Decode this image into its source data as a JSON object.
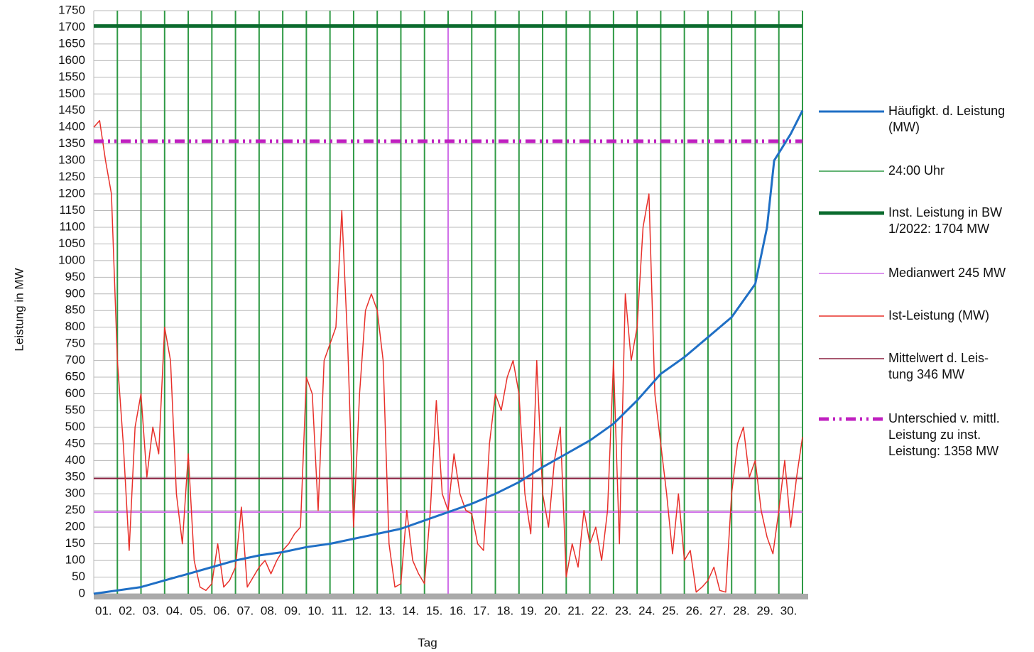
{
  "chart_data": {
    "type": "line",
    "y_label": "Leistung in MW",
    "x_label": "Tag",
    "categories": [
      "01.",
      "02.",
      "03.",
      "04.",
      "05.",
      "06.",
      "07.",
      "08.",
      "09.",
      "10.",
      "11.",
      "12.",
      "13.",
      "14.",
      "15.",
      "16.",
      "17.",
      "18.",
      "19.",
      "20.",
      "21.",
      "22.",
      "23.",
      "24.",
      "25.",
      "26.",
      "27.",
      "28.",
      "29.",
      "30."
    ],
    "xlim": [
      0,
      30
    ],
    "ylim": [
      0,
      1750
    ],
    "yticks": [
      0,
      50,
      100,
      150,
      200,
      250,
      300,
      350,
      400,
      450,
      500,
      550,
      600,
      650,
      700,
      750,
      800,
      850,
      900,
      950,
      1000,
      1050,
      1100,
      1150,
      1200,
      1250,
      1300,
      1350,
      1400,
      1450,
      1500,
      1550,
      1600,
      1650,
      1700,
      1750
    ],
    "grid": true,
    "series": [
      {
        "name": "Häufigkt. d. Leistung\n(MW)",
        "color": "#1f6fc5",
        "kind": "curve",
        "x": [
          0,
          2,
          3,
          4,
          5,
          6,
          7,
          8,
          9,
          10,
          11,
          12,
          13,
          14,
          15,
          16,
          17,
          18,
          19,
          20,
          21,
          22,
          23,
          24,
          25,
          26,
          27,
          28,
          28.5,
          28.8,
          29.5,
          30
        ],
        "values": [
          0,
          20,
          40,
          60,
          80,
          100,
          115,
          125,
          140,
          150,
          165,
          180,
          195,
          220,
          245,
          270,
          300,
          335,
          380,
          420,
          460,
          510,
          580,
          660,
          710,
          770,
          830,
          930,
          1100,
          1300,
          1380,
          1450
        ]
      },
      {
        "name": "24:00 Uhr",
        "color": "#2f9a45",
        "kind": "vlines",
        "values": [
          1,
          2,
          3,
          4,
          5,
          6,
          7,
          8,
          9,
          10,
          11,
          12,
          13,
          14,
          15,
          16,
          17,
          18,
          19,
          20,
          21,
          22,
          23,
          24,
          25,
          26,
          27,
          28,
          29,
          30
        ]
      },
      {
        "name": "Inst. Leistung in BW\n1/2022: 1704 MW",
        "color": "#0b6b2e",
        "kind": "hline",
        "value": 1704
      },
      {
        "name": "Medianwert 245 MW",
        "color": "#d070e8",
        "kind": "hline",
        "value": 245,
        "x_marker": 15
      },
      {
        "name": "Ist-Leistung (MW)",
        "color": "#e8302a",
        "kind": "curve",
        "x": [
          0,
          0.25,
          0.5,
          0.75,
          1,
          1.25,
          1.5,
          1.75,
          2,
          2.25,
          2.5,
          2.75,
          3,
          3.25,
          3.5,
          3.75,
          4,
          4.25,
          4.5,
          4.75,
          5,
          5.25,
          5.5,
          5.75,
          6,
          6.25,
          6.5,
          6.75,
          7,
          7.25,
          7.5,
          7.75,
          8,
          8.25,
          8.5,
          8.75,
          9,
          9.25,
          9.5,
          9.75,
          10,
          10.25,
          10.5,
          10.75,
          11,
          11.25,
          11.5,
          11.75,
          12,
          12.25,
          12.5,
          12.75,
          13,
          13.25,
          13.5,
          13.75,
          14,
          14.25,
          14.5,
          14.75,
          15,
          15.25,
          15.5,
          15.75,
          16,
          16.25,
          16.5,
          16.75,
          17,
          17.25,
          17.5,
          17.75,
          18,
          18.25,
          18.5,
          18.75,
          19,
          19.25,
          19.5,
          19.75,
          20,
          20.25,
          20.5,
          20.75,
          21,
          21.25,
          21.5,
          21.75,
          22,
          22.25,
          22.5,
          22.75,
          23,
          23.25,
          23.5,
          23.75,
          24,
          24.25,
          24.5,
          24.75,
          25,
          25.25,
          25.5,
          25.75,
          26,
          26.25,
          26.5,
          26.75,
          27,
          27.25,
          27.5,
          27.75,
          28,
          28.25,
          28.5,
          28.75,
          29,
          29.25,
          29.5,
          29.75,
          30
        ],
        "values": [
          1400,
          1420,
          1300,
          1200,
          700,
          450,
          130,
          500,
          600,
          350,
          500,
          420,
          800,
          700,
          300,
          150,
          420,
          100,
          20,
          10,
          30,
          150,
          20,
          40,
          80,
          260,
          20,
          50,
          80,
          100,
          60,
          100,
          130,
          150,
          180,
          200,
          650,
          600,
          250,
          700,
          750,
          800,
          1150,
          750,
          200,
          600,
          850,
          900,
          850,
          700,
          150,
          20,
          30,
          250,
          100,
          60,
          30,
          250,
          580,
          300,
          250,
          420,
          300,
          250,
          240,
          150,
          130,
          450,
          600,
          550,
          650,
          700,
          600,
          300,
          180,
          700,
          300,
          200,
          400,
          500,
          50,
          150,
          80,
          250,
          150,
          200,
          100,
          250,
          700,
          150,
          900,
          700,
          800,
          1100,
          1200,
          600,
          450,
          300,
          120,
          300,
          100,
          130,
          5,
          20,
          40,
          80,
          10,
          5,
          300,
          450,
          500,
          350,
          400,
          250,
          170,
          120,
          250,
          400,
          200,
          350,
          470
        ]
      },
      {
        "name": "Mittelwert d. Leis-\ntung 346 MW",
        "color": "#8b2040",
        "kind": "hline",
        "value": 346
      },
      {
        "name": "Unterschied v. mittl.\nLeistung zu inst.\nLeistung: 1358 MW",
        "color": "#c020c0",
        "kind": "hline",
        "value": 1358,
        "dash": "14 6 3 6 3 6"
      }
    ]
  }
}
